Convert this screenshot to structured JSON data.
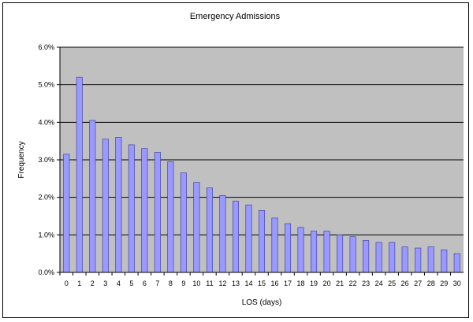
{
  "chart_data": {
    "type": "bar",
    "title": "Emergency Admissions",
    "xlabel": "LOS (days)",
    "ylabel": "Frequency",
    "ylim": [
      0,
      6
    ],
    "y_unit": "%",
    "yticks": [
      "0.0%",
      "1.0%",
      "2.0%",
      "3.0%",
      "4.0%",
      "5.0%",
      "6.0%"
    ],
    "grid": true,
    "legend": "none",
    "categories": [
      "0",
      "1",
      "2",
      "3",
      "4",
      "5",
      "6",
      "7",
      "8",
      "9",
      "10",
      "11",
      "12",
      "13",
      "14",
      "15",
      "16",
      "17",
      "18",
      "19",
      "20",
      "21",
      "22",
      "23",
      "24",
      "25",
      "26",
      "27",
      "28",
      "29",
      "30"
    ],
    "series": [
      {
        "values": [
          3.15,
          5.2,
          4.05,
          3.55,
          3.6,
          3.4,
          3.3,
          3.2,
          2.95,
          2.65,
          2.4,
          2.25,
          2.05,
          1.9,
          1.8,
          1.65,
          1.45,
          1.3,
          1.2,
          1.1,
          1.1,
          1.0,
          0.95,
          0.85,
          0.8,
          0.8,
          0.68,
          0.65,
          0.68,
          0.6,
          0.5
        ]
      }
    ],
    "colors": {
      "bar_fill": "#9999FF",
      "bar_stroke": "#333399",
      "plot_bg": "#C0C0C0",
      "grid": "#000000"
    }
  }
}
